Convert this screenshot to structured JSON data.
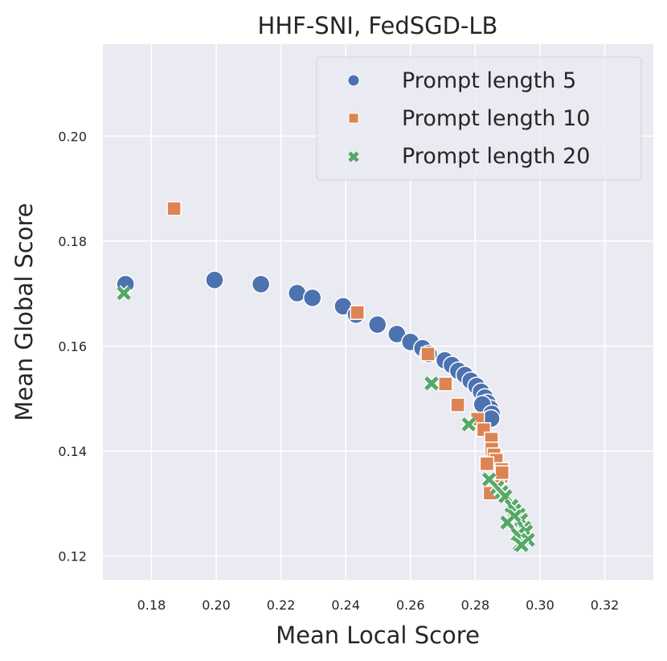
{
  "chart_data": {
    "type": "scatter",
    "title": "HHF-SNI, FedSGD-LB",
    "xlabel": "Mean Local Score",
    "ylabel": "Mean Global Score",
    "xlim": [
      0.165,
      0.335
    ],
    "ylim": [
      0.1155,
      0.2175
    ],
    "xticks": [
      0.18,
      0.2,
      0.22,
      0.24,
      0.26,
      0.28,
      0.3,
      0.32
    ],
    "xtick_labels": [
      "0.18",
      "0.20",
      "0.22",
      "0.24",
      "0.26",
      "0.28",
      "0.30",
      "0.32"
    ],
    "yticks": [
      0.12,
      0.14,
      0.16,
      0.18,
      0.2
    ],
    "ytick_labels": [
      "0.12",
      "0.14",
      "0.16",
      "0.18",
      "0.20"
    ],
    "grid": true,
    "legend_position": "top-right",
    "colors": {
      "background": "#eaeaf2",
      "grid": "#ffffff",
      "text": "#262626",
      "series_5": "#4c72b0",
      "series_10": "#dd8452",
      "series_20": "#55a868"
    },
    "series": [
      {
        "name": "Prompt length 5",
        "marker": "circle",
        "color": "#4c72b0",
        "x": [
          0.172,
          0.1995,
          0.2138,
          0.225,
          0.2297,
          0.2392,
          0.2432,
          0.2498,
          0.2558,
          0.26,
          0.2637,
          0.2656,
          0.2706,
          0.2728,
          0.2748,
          0.2768,
          0.2786,
          0.2804,
          0.2818,
          0.283,
          0.2838,
          0.2846,
          0.2822,
          0.2851,
          0.2849
        ],
        "y": [
          0.1718,
          0.1726,
          0.1718,
          0.1701,
          0.1692,
          0.1676,
          0.166,
          0.1641,
          0.1623,
          0.1608,
          0.1596,
          0.1585,
          0.1573,
          0.1564,
          0.1553,
          0.1545,
          0.1534,
          0.1524,
          0.1513,
          0.1502,
          0.1492,
          0.1481,
          0.1489,
          0.1471,
          0.1462
        ]
      },
      {
        "name": "Prompt length 10",
        "marker": "square",
        "color": "#dd8452",
        "x": [
          0.187,
          0.2436,
          0.2654,
          0.2708,
          0.2746,
          0.2807,
          0.2826,
          0.285,
          0.2851,
          0.2858,
          0.2865,
          0.2882,
          0.288,
          0.2836,
          0.2869,
          0.2864,
          0.2852,
          0.2883,
          0.2846
        ],
        "y": [
          0.1862,
          0.1664,
          0.1585,
          0.1528,
          0.1488,
          0.1461,
          0.1441,
          0.1423,
          0.1404,
          0.1393,
          0.1383,
          0.1365,
          0.1352,
          0.1376,
          0.1345,
          0.1333,
          0.1321,
          0.1359,
          0.132
        ]
      },
      {
        "name": "Prompt length 20",
        "marker": "x",
        "color": "#55a868",
        "x": [
          0.1715,
          0.2665,
          0.278,
          0.2843,
          0.2868,
          0.2881,
          0.2893,
          0.2912,
          0.2921,
          0.2934,
          0.2942,
          0.2922,
          0.2951,
          0.2957,
          0.2899,
          0.2931,
          0.2946,
          0.2937,
          0.2963,
          0.2943
        ],
        "y": [
          0.1701,
          0.1529,
          0.1451,
          0.1346,
          0.1331,
          0.1322,
          0.1314,
          0.1296,
          0.1287,
          0.1279,
          0.1269,
          0.1276,
          0.1254,
          0.1247,
          0.1264,
          0.1241,
          0.1232,
          0.1223,
          0.1231,
          0.1221
        ]
      }
    ]
  }
}
